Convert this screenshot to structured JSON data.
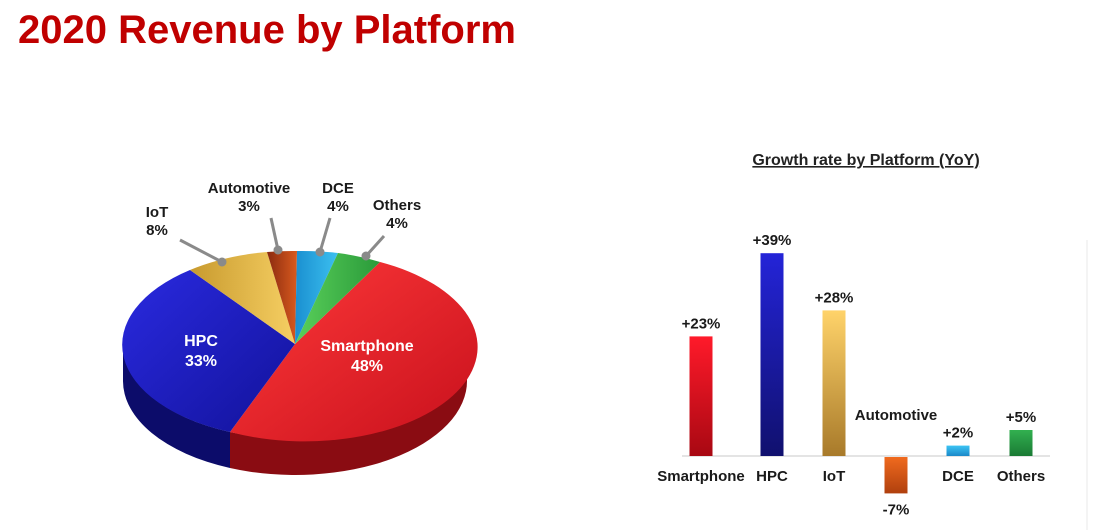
{
  "page": {
    "title": "2020 Revenue by Platform"
  },
  "colors": {
    "title": "#c00000",
    "Smartphone": "#e8101c",
    "HPC": "#1b1bb8",
    "IoT": "#e2b54a",
    "Automotive": "#d45a1a",
    "DCE": "#1fa3de",
    "Others": "#3cb54a"
  },
  "chart_data": [
    {
      "type": "pie",
      "slices": [
        {
          "name": "Smartphone",
          "value": 48,
          "label": "48%"
        },
        {
          "name": "HPC",
          "value": 33,
          "label": "33%"
        },
        {
          "name": "IoT",
          "value": 8,
          "label": "8%"
        },
        {
          "name": "Automotive",
          "value": 3,
          "label": "3%"
        },
        {
          "name": "DCE",
          "value": 4,
          "label": "4%"
        },
        {
          "name": "Others",
          "value": 4,
          "label": "4%"
        }
      ]
    },
    {
      "type": "bar",
      "title": "Growth rate by Platform (YoY)",
      "categories": [
        "Smartphone",
        "HPC",
        "IoT",
        "Automotive",
        "DCE",
        "Others"
      ],
      "values": [
        23,
        39,
        28,
        -7,
        2,
        5
      ],
      "value_labels": [
        "+23%",
        "+39%",
        "+28%",
        "-7%",
        "+2%",
        "+5%"
      ]
    }
  ]
}
